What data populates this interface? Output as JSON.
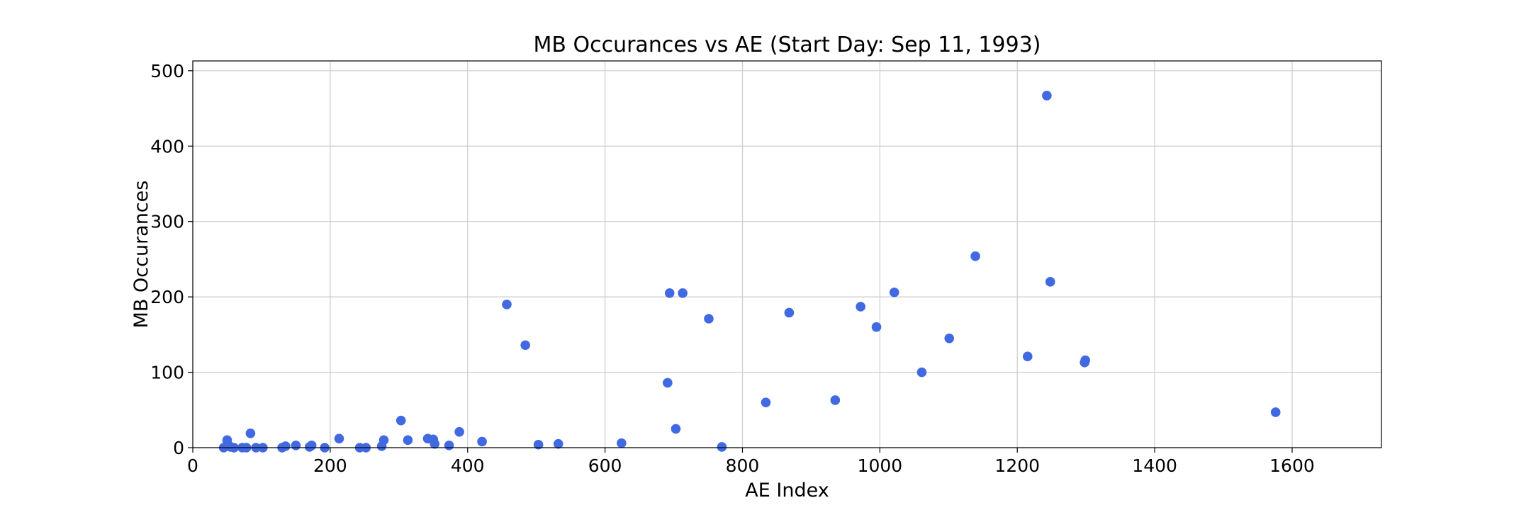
{
  "chart_data": {
    "type": "scatter",
    "title": "MB Occurances vs AE (Start Day: Sep 11, 1993)",
    "xlabel": "AE Index",
    "ylabel": "MB Occurances",
    "xlim": [
      0,
      1730
    ],
    "ylim": [
      0,
      513
    ],
    "xticks": [
      0,
      200,
      400,
      600,
      800,
      1000,
      1200,
      1400,
      1600
    ],
    "yticks": [
      0,
      100,
      200,
      300,
      400,
      500
    ],
    "grid": true,
    "marker_color": "#4169e1",
    "points": [
      {
        "x": 45,
        "y": 0
      },
      {
        "x": 50,
        "y": 10
      },
      {
        "x": 52,
        "y": 3
      },
      {
        "x": 55,
        "y": 1
      },
      {
        "x": 60,
        "y": 0
      },
      {
        "x": 72,
        "y": 0
      },
      {
        "x": 78,
        "y": 0
      },
      {
        "x": 84,
        "y": 19
      },
      {
        "x": 92,
        "y": 0
      },
      {
        "x": 102,
        "y": 0
      },
      {
        "x": 130,
        "y": 0
      },
      {
        "x": 135,
        "y": 2
      },
      {
        "x": 150,
        "y": 3
      },
      {
        "x": 170,
        "y": 1
      },
      {
        "x": 173,
        "y": 3
      },
      {
        "x": 192,
        "y": 0
      },
      {
        "x": 213,
        "y": 12
      },
      {
        "x": 243,
        "y": 0
      },
      {
        "x": 252,
        "y": 0
      },
      {
        "x": 275,
        "y": 2
      },
      {
        "x": 278,
        "y": 10
      },
      {
        "x": 303,
        "y": 36
      },
      {
        "x": 313,
        "y": 10
      },
      {
        "x": 342,
        "y": 12
      },
      {
        "x": 350,
        "y": 11
      },
      {
        "x": 352,
        "y": 5
      },
      {
        "x": 373,
        "y": 3
      },
      {
        "x": 388,
        "y": 21
      },
      {
        "x": 421,
        "y": 8
      },
      {
        "x": 457,
        "y": 190
      },
      {
        "x": 484,
        "y": 136
      },
      {
        "x": 503,
        "y": 4
      },
      {
        "x": 532,
        "y": 5
      },
      {
        "x": 624,
        "y": 6
      },
      {
        "x": 691,
        "y": 86
      },
      {
        "x": 694,
        "y": 205
      },
      {
        "x": 703,
        "y": 25
      },
      {
        "x": 713,
        "y": 205
      },
      {
        "x": 751,
        "y": 171
      },
      {
        "x": 770,
        "y": 1
      },
      {
        "x": 834,
        "y": 60
      },
      {
        "x": 868,
        "y": 179
      },
      {
        "x": 935,
        "y": 63
      },
      {
        "x": 972,
        "y": 187
      },
      {
        "x": 995,
        "y": 160
      },
      {
        "x": 1021,
        "y": 206
      },
      {
        "x": 1061,
        "y": 100
      },
      {
        "x": 1101,
        "y": 145
      },
      {
        "x": 1139,
        "y": 254
      },
      {
        "x": 1215,
        "y": 121
      },
      {
        "x": 1243,
        "y": 467
      },
      {
        "x": 1248,
        "y": 220
      },
      {
        "x": 1298,
        "y": 113
      },
      {
        "x": 1299,
        "y": 116
      },
      {
        "x": 1576,
        "y": 47
      }
    ]
  }
}
